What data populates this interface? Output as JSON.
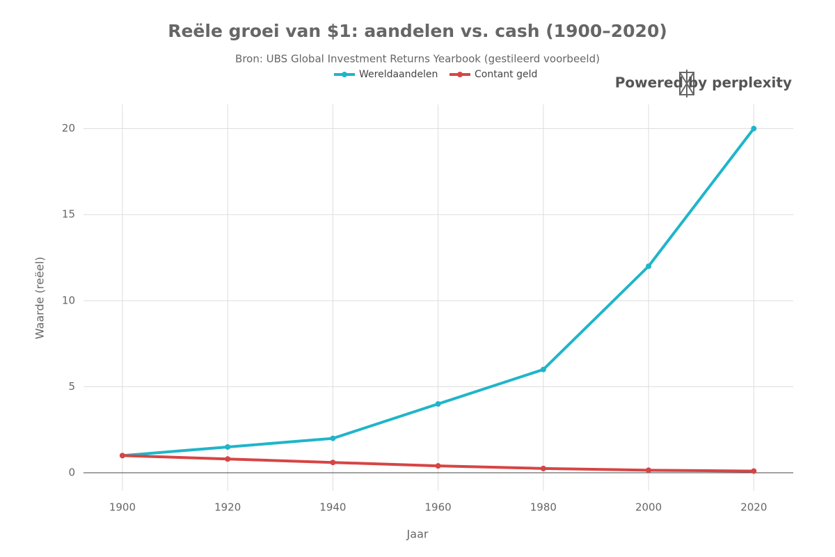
{
  "chart_data": {
    "type": "line",
    "title": "Reële groei van $1: aandelen vs. cash (1900–2020)",
    "subtitle": "Bron: UBS Global Investment Returns Yearbook (gestileerd voorbeeld)",
    "watermark": "Powered by perplexity",
    "x_label": "Jaar",
    "y_label": "Waarde (reëel)",
    "x": [
      1900,
      1920,
      1940,
      1960,
      1980,
      2000,
      2020
    ],
    "series": [
      {
        "name": "Wereldaandelen",
        "color": "#1fb5c9",
        "values": [
          1,
          1.5,
          2,
          4,
          6,
          12,
          20
        ]
      },
      {
        "name": "Contant geld",
        "color": "#d64545",
        "values": [
          1,
          0.8,
          0.6,
          0.4,
          0.25,
          0.15,
          0.1
        ]
      }
    ],
    "xlim": [
      1892.6,
      2027.5
    ],
    "xticks": [
      1900,
      1920,
      1940,
      1960,
      1980,
      2000,
      2020
    ],
    "ylim": [
      -1.05,
      21.4
    ],
    "yticks": [
      0,
      5,
      10,
      15,
      20
    ],
    "grid": true,
    "legend": "top"
  }
}
